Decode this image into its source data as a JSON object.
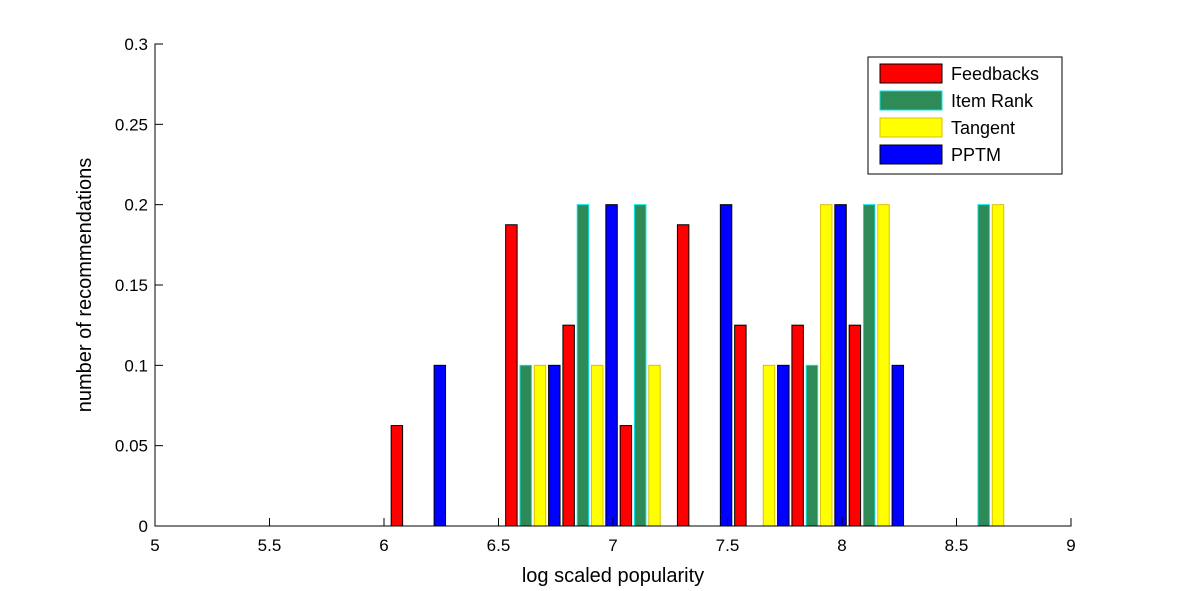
{
  "chart_data": {
    "type": "bar",
    "xlabel": "log scaled popularity",
    "ylabel": "number of recommendations",
    "xlim": [
      5,
      9
    ],
    "ylim": [
      0,
      0.3
    ],
    "xticks": [
      "5",
      "5.5",
      "6",
      "6.5",
      "7",
      "7.5",
      "8",
      "8.5",
      "9"
    ],
    "yticks": [
      "0",
      "0.05",
      "0.1",
      "0.15",
      "0.2",
      "0.25",
      "0.3"
    ],
    "grid": false,
    "legend_position": "top-right",
    "categories": [
      5.15,
      5.4,
      5.65,
      5.9,
      6.15,
      6.4,
      6.65,
      6.9,
      7.15,
      7.4,
      7.65,
      7.9,
      8.15,
      8.4,
      8.65,
      8.9
    ],
    "series": [
      {
        "name": "Feedbacks",
        "color": "#ff0000",
        "edge": "#000000",
        "values": [
          0,
          0,
          0,
          0,
          0.0625,
          0,
          0.1875,
          0.125,
          0.0625,
          0.1875,
          0.125,
          0.125,
          0.125,
          0,
          0,
          0
        ]
      },
      {
        "name": "Item Rank",
        "color": "#2e8b57",
        "edge": "#00e5e5",
        "values": [
          0,
          0,
          0,
          0,
          0,
          0,
          0.1,
          0.2,
          0.2,
          0,
          0,
          0.1,
          0.2,
          0,
          0.2,
          0
        ]
      },
      {
        "name": "Tangent",
        "color": "#ffff00",
        "edge": "#e0c000",
        "values": [
          0,
          0,
          0,
          0,
          0,
          0,
          0.1,
          0.1,
          0.1,
          0,
          0.1,
          0.2,
          0.2,
          0,
          0.2,
          0
        ]
      },
      {
        "name": "PPTM",
        "color": "#0000ff",
        "edge": "#000000",
        "values": [
          0,
          0,
          0,
          0,
          0.1,
          0,
          0.1,
          0.2,
          0,
          0.2,
          0.1,
          0.2,
          0.1,
          0,
          0,
          0
        ]
      }
    ]
  }
}
